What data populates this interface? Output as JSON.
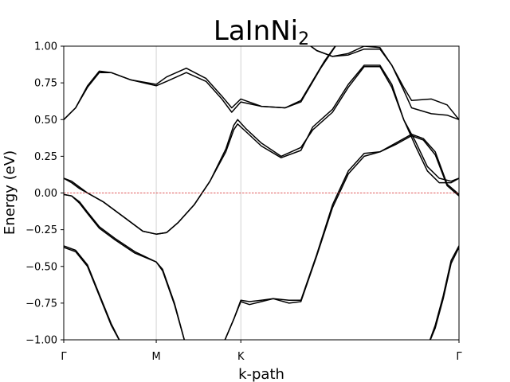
{
  "chart_data": {
    "type": "line",
    "title": "LaInNi",
    "title_subscript": "2",
    "xlabel": "k-path",
    "ylabel": "Energy (eV)",
    "ylim": [
      -1.0,
      1.0
    ],
    "xlim": [
      0,
      1
    ],
    "y_ticks": [
      -1.0,
      -0.75,
      -0.5,
      -0.25,
      0.0,
      0.25,
      0.5,
      0.75,
      1.0
    ],
    "y_tick_labels": [
      "−1.00",
      "−0.75",
      "−0.50",
      "−0.25",
      "0.00",
      "0.25",
      "0.50",
      "0.75",
      "1.00"
    ],
    "high_symmetry_points": [
      {
        "label": "Γ",
        "x": 0.0
      },
      {
        "label": "M",
        "x": 0.234
      },
      {
        "label": "K",
        "x": 0.448
      },
      {
        "label": "Γ",
        "x": 1.0
      }
    ],
    "fermi_level": 0.0,
    "grid": false,
    "series": [
      {
        "values": [
          [
            0.0,
            0.5
          ],
          [
            0.03,
            0.58
          ],
          [
            0.06,
            0.72
          ],
          [
            0.09,
            0.82
          ],
          [
            0.12,
            0.82
          ],
          [
            0.17,
            0.77
          ],
          [
            0.234,
            0.73
          ],
          [
            0.26,
            0.76
          ],
          [
            0.31,
            0.82
          ],
          [
            0.36,
            0.76
          ],
          [
            0.4,
            0.64
          ],
          [
            0.425,
            0.55
          ],
          [
            0.448,
            0.62
          ],
          [
            0.5,
            0.59
          ],
          [
            0.56,
            0.58
          ],
          [
            0.6,
            0.62
          ],
          [
            0.65,
            0.85
          ],
          [
            0.7,
            1.05
          ]
        ]
      },
      {
        "values": [
          [
            0.0,
            0.5
          ],
          [
            0.03,
            0.58
          ],
          [
            0.06,
            0.73
          ],
          [
            0.09,
            0.83
          ],
          [
            0.12,
            0.82
          ],
          [
            0.17,
            0.77
          ],
          [
            0.234,
            0.74
          ],
          [
            0.26,
            0.79
          ],
          [
            0.31,
            0.85
          ],
          [
            0.36,
            0.78
          ],
          [
            0.4,
            0.66
          ],
          [
            0.425,
            0.58
          ],
          [
            0.448,
            0.64
          ],
          [
            0.5,
            0.59
          ],
          [
            0.56,
            0.58
          ],
          [
            0.6,
            0.63
          ],
          [
            0.66,
            0.9
          ],
          [
            0.7,
            1.05
          ]
        ]
      },
      {
        "values": [
          [
            0.6,
            1.05
          ],
          [
            0.64,
            0.97
          ],
          [
            0.68,
            0.93
          ],
          [
            0.72,
            0.94
          ],
          [
            0.76,
            0.98
          ],
          [
            0.8,
            0.98
          ],
          [
            0.83,
            0.87
          ],
          [
            0.86,
            0.72
          ],
          [
            0.88,
            0.63
          ],
          [
            0.93,
            0.64
          ],
          [
            0.97,
            0.6
          ],
          [
            1.0,
            0.5
          ]
        ]
      },
      {
        "values": [
          [
            0.6,
            1.05
          ],
          [
            0.64,
            0.97
          ],
          [
            0.68,
            0.93
          ],
          [
            0.72,
            0.95
          ],
          [
            0.76,
            1.0
          ],
          [
            0.8,
            0.99
          ],
          [
            0.83,
            0.87
          ],
          [
            0.86,
            0.7
          ],
          [
            0.88,
            0.58
          ],
          [
            0.93,
            0.54
          ],
          [
            0.97,
            0.53
          ],
          [
            1.0,
            0.5
          ]
        ]
      },
      {
        "values": [
          [
            0.0,
            0.1
          ],
          [
            0.02,
            0.08
          ],
          [
            0.04,
            0.04
          ],
          [
            0.06,
            0.0
          ],
          [
            0.1,
            -0.06
          ],
          [
            0.15,
            -0.16
          ],
          [
            0.2,
            -0.26
          ],
          [
            0.234,
            -0.28
          ],
          [
            0.26,
            -0.27
          ],
          [
            0.29,
            -0.2
          ],
          [
            0.33,
            -0.08
          ],
          [
            0.37,
            0.08
          ],
          [
            0.41,
            0.3
          ],
          [
            0.43,
            0.46
          ],
          [
            0.44,
            0.5
          ],
          [
            0.46,
            0.44
          ],
          [
            0.5,
            0.34
          ],
          [
            0.55,
            0.25
          ],
          [
            0.6,
            0.31
          ],
          [
            0.63,
            0.43
          ],
          [
            0.68,
            0.55
          ],
          [
            0.72,
            0.72
          ],
          [
            0.76,
            0.86
          ],
          [
            0.8,
            0.86
          ],
          [
            0.83,
            0.72
          ],
          [
            0.86,
            0.5
          ],
          [
            0.89,
            0.35
          ],
          [
            0.92,
            0.18
          ],
          [
            0.95,
            0.1
          ],
          [
            0.98,
            0.08
          ],
          [
            1.0,
            0.1
          ]
        ]
      },
      {
        "values": [
          [
            0.0,
            0.1
          ],
          [
            0.02,
            0.07
          ],
          [
            0.04,
            0.03
          ],
          [
            0.06,
            0.0
          ],
          [
            0.1,
            -0.06
          ],
          [
            0.15,
            -0.16
          ],
          [
            0.2,
            -0.26
          ],
          [
            0.234,
            -0.28
          ],
          [
            0.26,
            -0.27
          ],
          [
            0.29,
            -0.2
          ],
          [
            0.33,
            -0.08
          ],
          [
            0.37,
            0.08
          ],
          [
            0.41,
            0.28
          ],
          [
            0.43,
            0.43
          ],
          [
            0.44,
            0.47
          ],
          [
            0.46,
            0.42
          ],
          [
            0.5,
            0.32
          ],
          [
            0.55,
            0.24
          ],
          [
            0.6,
            0.29
          ],
          [
            0.63,
            0.45
          ],
          [
            0.68,
            0.57
          ],
          [
            0.72,
            0.74
          ],
          [
            0.76,
            0.87
          ],
          [
            0.8,
            0.87
          ],
          [
            0.83,
            0.74
          ],
          [
            0.86,
            0.5
          ],
          [
            0.89,
            0.32
          ],
          [
            0.92,
            0.15
          ],
          [
            0.95,
            0.07
          ],
          [
            0.98,
            0.07
          ],
          [
            1.0,
            0.1
          ]
        ]
      },
      {
        "values": [
          [
            0.0,
            -0.01
          ],
          [
            0.02,
            -0.02
          ],
          [
            0.04,
            -0.06
          ],
          [
            0.06,
            -0.13
          ],
          [
            0.09,
            -0.23
          ],
          [
            0.13,
            -0.31
          ],
          [
            0.18,
            -0.4
          ],
          [
            0.234,
            -0.47
          ],
          [
            0.25,
            -0.52
          ],
          [
            0.28,
            -0.75
          ],
          [
            0.31,
            -1.05
          ]
        ]
      },
      {
        "values": [
          [
            0.0,
            -0.01
          ],
          [
            0.02,
            -0.02
          ],
          [
            0.04,
            -0.07
          ],
          [
            0.06,
            -0.14
          ],
          [
            0.09,
            -0.24
          ],
          [
            0.13,
            -0.32
          ],
          [
            0.18,
            -0.41
          ],
          [
            0.234,
            -0.47
          ],
          [
            0.25,
            -0.53
          ],
          [
            0.28,
            -0.76
          ],
          [
            0.31,
            -1.05
          ]
        ]
      },
      {
        "values": [
          [
            0.0,
            -0.37
          ],
          [
            0.03,
            -0.4
          ],
          [
            0.06,
            -0.5
          ],
          [
            0.09,
            -0.7
          ],
          [
            0.12,
            -0.9
          ],
          [
            0.15,
            -1.05
          ]
        ]
      },
      {
        "values": [
          [
            0.0,
            -0.36
          ],
          [
            0.03,
            -0.39
          ],
          [
            0.06,
            -0.49
          ],
          [
            0.09,
            -0.69
          ],
          [
            0.12,
            -0.89
          ],
          [
            0.15,
            -1.05
          ]
        ]
      },
      {
        "values": [
          [
            0.4,
            -1.05
          ],
          [
            0.43,
            -0.86
          ],
          [
            0.448,
            -0.74
          ],
          [
            0.47,
            -0.76
          ],
          [
            0.5,
            -0.74
          ],
          [
            0.53,
            -0.72
          ],
          [
            0.57,
            -0.75
          ],
          [
            0.6,
            -0.74
          ],
          [
            0.64,
            -0.43
          ],
          [
            0.68,
            -0.1
          ],
          [
            0.72,
            0.13
          ],
          [
            0.76,
            0.25
          ],
          [
            0.8,
            0.28
          ],
          [
            0.84,
            0.33
          ],
          [
            0.88,
            0.39
          ],
          [
            0.91,
            0.36
          ],
          [
            0.94,
            0.26
          ],
          [
            0.97,
            0.05
          ],
          [
            1.0,
            -0.02
          ]
        ]
      },
      {
        "values": [
          [
            0.4,
            -1.05
          ],
          [
            0.43,
            -0.86
          ],
          [
            0.448,
            -0.73
          ],
          [
            0.47,
            -0.74
          ],
          [
            0.5,
            -0.73
          ],
          [
            0.53,
            -0.72
          ],
          [
            0.57,
            -0.73
          ],
          [
            0.6,
            -0.73
          ],
          [
            0.64,
            -0.42
          ],
          [
            0.68,
            -0.08
          ],
          [
            0.72,
            0.15
          ],
          [
            0.76,
            0.27
          ],
          [
            0.8,
            0.28
          ],
          [
            0.84,
            0.34
          ],
          [
            0.88,
            0.4
          ],
          [
            0.91,
            0.37
          ],
          [
            0.94,
            0.28
          ],
          [
            0.97,
            0.06
          ],
          [
            1.0,
            -0.01
          ]
        ]
      },
      {
        "values": [
          [
            0.92,
            -1.05
          ],
          [
            0.94,
            -0.92
          ],
          [
            0.96,
            -0.72
          ],
          [
            0.98,
            -0.48
          ],
          [
            1.0,
            -0.37
          ]
        ]
      },
      {
        "values": [
          [
            0.92,
            -1.05
          ],
          [
            0.94,
            -0.9
          ],
          [
            0.96,
            -0.7
          ],
          [
            0.98,
            -0.46
          ],
          [
            1.0,
            -0.36
          ]
        ]
      }
    ]
  }
}
